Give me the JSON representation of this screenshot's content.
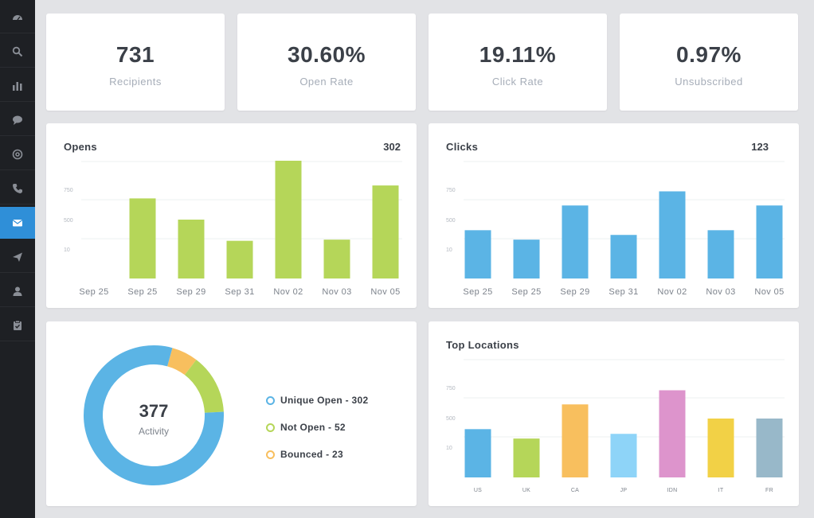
{
  "sidebar": {
    "items": [
      {
        "icon": "dashboard-icon",
        "active": false
      },
      {
        "icon": "search-icon",
        "active": false
      },
      {
        "icon": "bar-chart-icon",
        "active": false
      },
      {
        "icon": "chat-icon",
        "active": false
      },
      {
        "icon": "at-sign-icon",
        "active": false
      },
      {
        "icon": "phone-icon",
        "active": false
      },
      {
        "icon": "envelope-icon",
        "active": true
      },
      {
        "icon": "paper-plane-icon",
        "active": false
      },
      {
        "icon": "user-icon",
        "active": false
      },
      {
        "icon": "clipboard-check-icon",
        "active": false
      }
    ]
  },
  "stats": [
    {
      "value": "731",
      "label": "Recipients"
    },
    {
      "value": "30.60%",
      "label": "Open Rate"
    },
    {
      "value": "19.11%",
      "label": "Click Rate"
    },
    {
      "value": "0.97%",
      "label": "Unsubscribed"
    }
  ],
  "opens": {
    "title": "Opens",
    "total": "302"
  },
  "clicks": {
    "title": "Clicks",
    "total": "123"
  },
  "locations": {
    "title": "Top Locations"
  },
  "activity": {
    "value": "377",
    "label": "Activity",
    "legend": [
      {
        "label": "Unique Open - 302",
        "color": "#5bb4e5"
      },
      {
        "label": "Not Open - 52",
        "color": "#b5d659"
      },
      {
        "label": "Bounced - 23",
        "color": "#f8bf5e"
      }
    ]
  },
  "chart_data": [
    {
      "id": "opens",
      "type": "bar",
      "title": "Opens",
      "categories": [
        "Sep 25",
        "Sep 25",
        "Sep 29",
        "Sep 31",
        "Nov 02",
        "Nov 03",
        "Nov 05"
      ],
      "values": [
        0,
        680,
        500,
        320,
        1000,
        330,
        790
      ],
      "ylim": [
        0,
        1000
      ],
      "yticks": [
        "750",
        "500",
        "10"
      ],
      "color": "#b5d659"
    },
    {
      "id": "clicks",
      "type": "bar",
      "title": "Clicks",
      "categories": [
        "Sep 25",
        "Sep 25",
        "Sep 29",
        "Sep 31",
        "Nov 02",
        "Nov 03",
        "Nov 05"
      ],
      "values": [
        410,
        330,
        620,
        370,
        740,
        410,
        620
      ],
      "ylim": [
        0,
        1000
      ],
      "yticks": [
        "750",
        "500",
        "10"
      ],
      "color": "#5bb4e5"
    },
    {
      "id": "locations",
      "type": "bar",
      "title": "Top Locations",
      "categories": [
        "US",
        "UK",
        "CA",
        "JP",
        "IDN",
        "IT",
        "FR"
      ],
      "values": [
        410,
        330,
        620,
        370,
        740,
        500,
        500
      ],
      "ylim": [
        0,
        1000
      ],
      "yticks": [
        "750",
        "500",
        "10"
      ],
      "colors": [
        "#5bb4e5",
        "#b5d659",
        "#f8bf5e",
        "#8ed4f8",
        "#dd94cc",
        "#f2d146",
        "#98b8c9"
      ]
    },
    {
      "id": "activity",
      "type": "pie",
      "title": "Activity",
      "categories": [
        "Unique Open",
        "Not Open",
        "Bounced"
      ],
      "values": [
        302,
        52,
        23
      ],
      "colors": [
        "#5bb4e5",
        "#b5d659",
        "#f8bf5e"
      ]
    }
  ]
}
